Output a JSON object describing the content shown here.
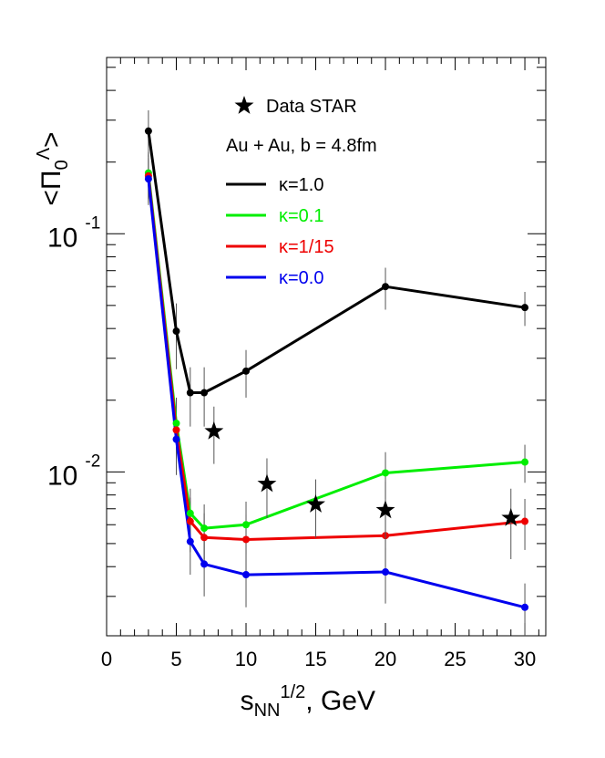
{
  "chart_data": {
    "type": "line",
    "xlabel": "s",
    "xlabel_sub": "NN",
    "xlabel_sup": "1/2",
    "xlabel_suffix": ", GeV",
    "ylabel": "<Π",
    "ylabel_sub": "0",
    "ylabel_sup": "Λ",
    "ylabel_suffix": ">",
    "xlim": [
      0,
      31.5
    ],
    "ylim": [
      0.00205,
      0.55
    ],
    "yscale": "log",
    "x_ticks": [
      {
        "value": 0,
        "label": "0"
      },
      {
        "value": 5,
        "label": "5"
      },
      {
        "value": 10,
        "label": "10"
      },
      {
        "value": 15,
        "label": "15"
      },
      {
        "value": 20,
        "label": "20"
      },
      {
        "value": 25,
        "label": "25"
      },
      {
        "value": 30,
        "label": "30"
      }
    ],
    "y_ticks": [
      {
        "value": 0.1,
        "base": "10",
        "exp": "-1"
      },
      {
        "value": 0.01,
        "base": "10",
        "exp": "-2"
      }
    ],
    "annotation": "Au + Au, b = 4.8fm",
    "legend_position": "top-center",
    "series": [
      {
        "name": "κ=1.0",
        "color": "#000000",
        "x": [
          3,
          5,
          6,
          7,
          10,
          20,
          30
        ],
        "y": [
          0.27,
          0.039,
          0.0215,
          0.0215,
          0.0265,
          0.06,
          0.049
        ],
        "err": [
          0.06,
          0.012,
          0.006,
          0.006,
          0.006,
          0.012,
          0.008
        ]
      },
      {
        "name": "κ=0.1",
        "color": "#00ee00",
        "x": [
          3,
          5,
          6,
          7,
          10,
          20,
          30
        ],
        "y": [
          0.18,
          0.016,
          0.0067,
          0.0058,
          0.006,
          0.0099,
          0.011
        ],
        "err": [
          0.04,
          0.0045,
          0.0018,
          0.0015,
          0.0015,
          0.0022,
          0.002
        ]
      },
      {
        "name": "κ=1/15",
        "color": "#ee0000",
        "x": [
          3,
          5,
          6,
          7,
          10,
          20,
          30
        ],
        "y": [
          0.175,
          0.015,
          0.0062,
          0.0053,
          0.0052,
          0.0054,
          0.0062
        ],
        "err": [
          0.04,
          0.0045,
          0.0016,
          0.0014,
          0.0014,
          0.0014,
          0.0015
        ]
      },
      {
        "name": "κ=0.0",
        "color": "#0000ee",
        "x": [
          3,
          5,
          6,
          7,
          10,
          20,
          30
        ],
        "y": [
          0.17,
          0.0137,
          0.0051,
          0.0041,
          0.0037,
          0.0038,
          0.0027
        ],
        "err": [
          0.038,
          0.004,
          0.0014,
          0.0011,
          0.001,
          0.001,
          0.0007
        ]
      }
    ],
    "data_points": {
      "name": "Data STAR",
      "marker": "star",
      "x": [
        7.7,
        11.5,
        15,
        20,
        29
      ],
      "y": [
        0.0148,
        0.0089,
        0.0073,
        0.0069,
        0.0064
      ],
      "err": [
        0.004,
        0.0025,
        0.002,
        0.0022,
        0.0021
      ]
    }
  }
}
